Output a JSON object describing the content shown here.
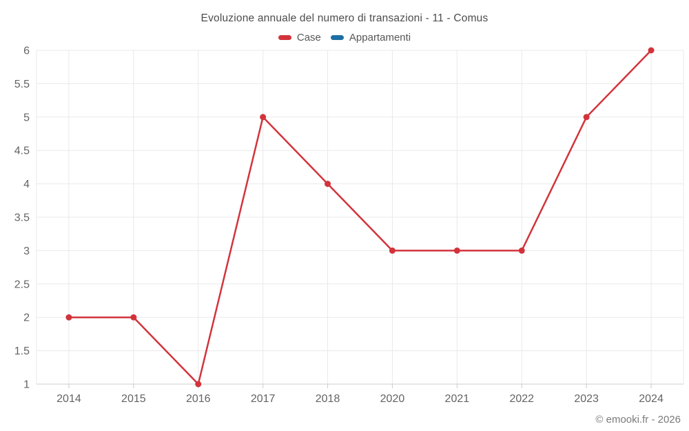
{
  "chart_data": {
    "type": "line",
    "title": "Evoluzione annuale del numero di transazioni - 11 - Comus",
    "categories": [
      "2014",
      "2015",
      "2016",
      "2017",
      "2018",
      "2020",
      "2021",
      "2022",
      "2023",
      "2024"
    ],
    "series": [
      {
        "name": "Case",
        "color": "#d2333b",
        "values": [
          2,
          2,
          1,
          5,
          4,
          3,
          3,
          3,
          5,
          6
        ]
      },
      {
        "name": "Appartamenti",
        "color": "#1d6fa5",
        "values": []
      }
    ],
    "xlabel": "",
    "ylabel": "",
    "ylim": [
      1,
      6
    ],
    "yticks": [
      "1",
      "1.5",
      "2",
      "2.5",
      "3",
      "3.5",
      "4",
      "4.5",
      "5",
      "5.5",
      "6"
    ],
    "grid": "on",
    "legend_position": "top-center"
  },
  "footer": {
    "credit": "© emooki.fr - 2026"
  }
}
